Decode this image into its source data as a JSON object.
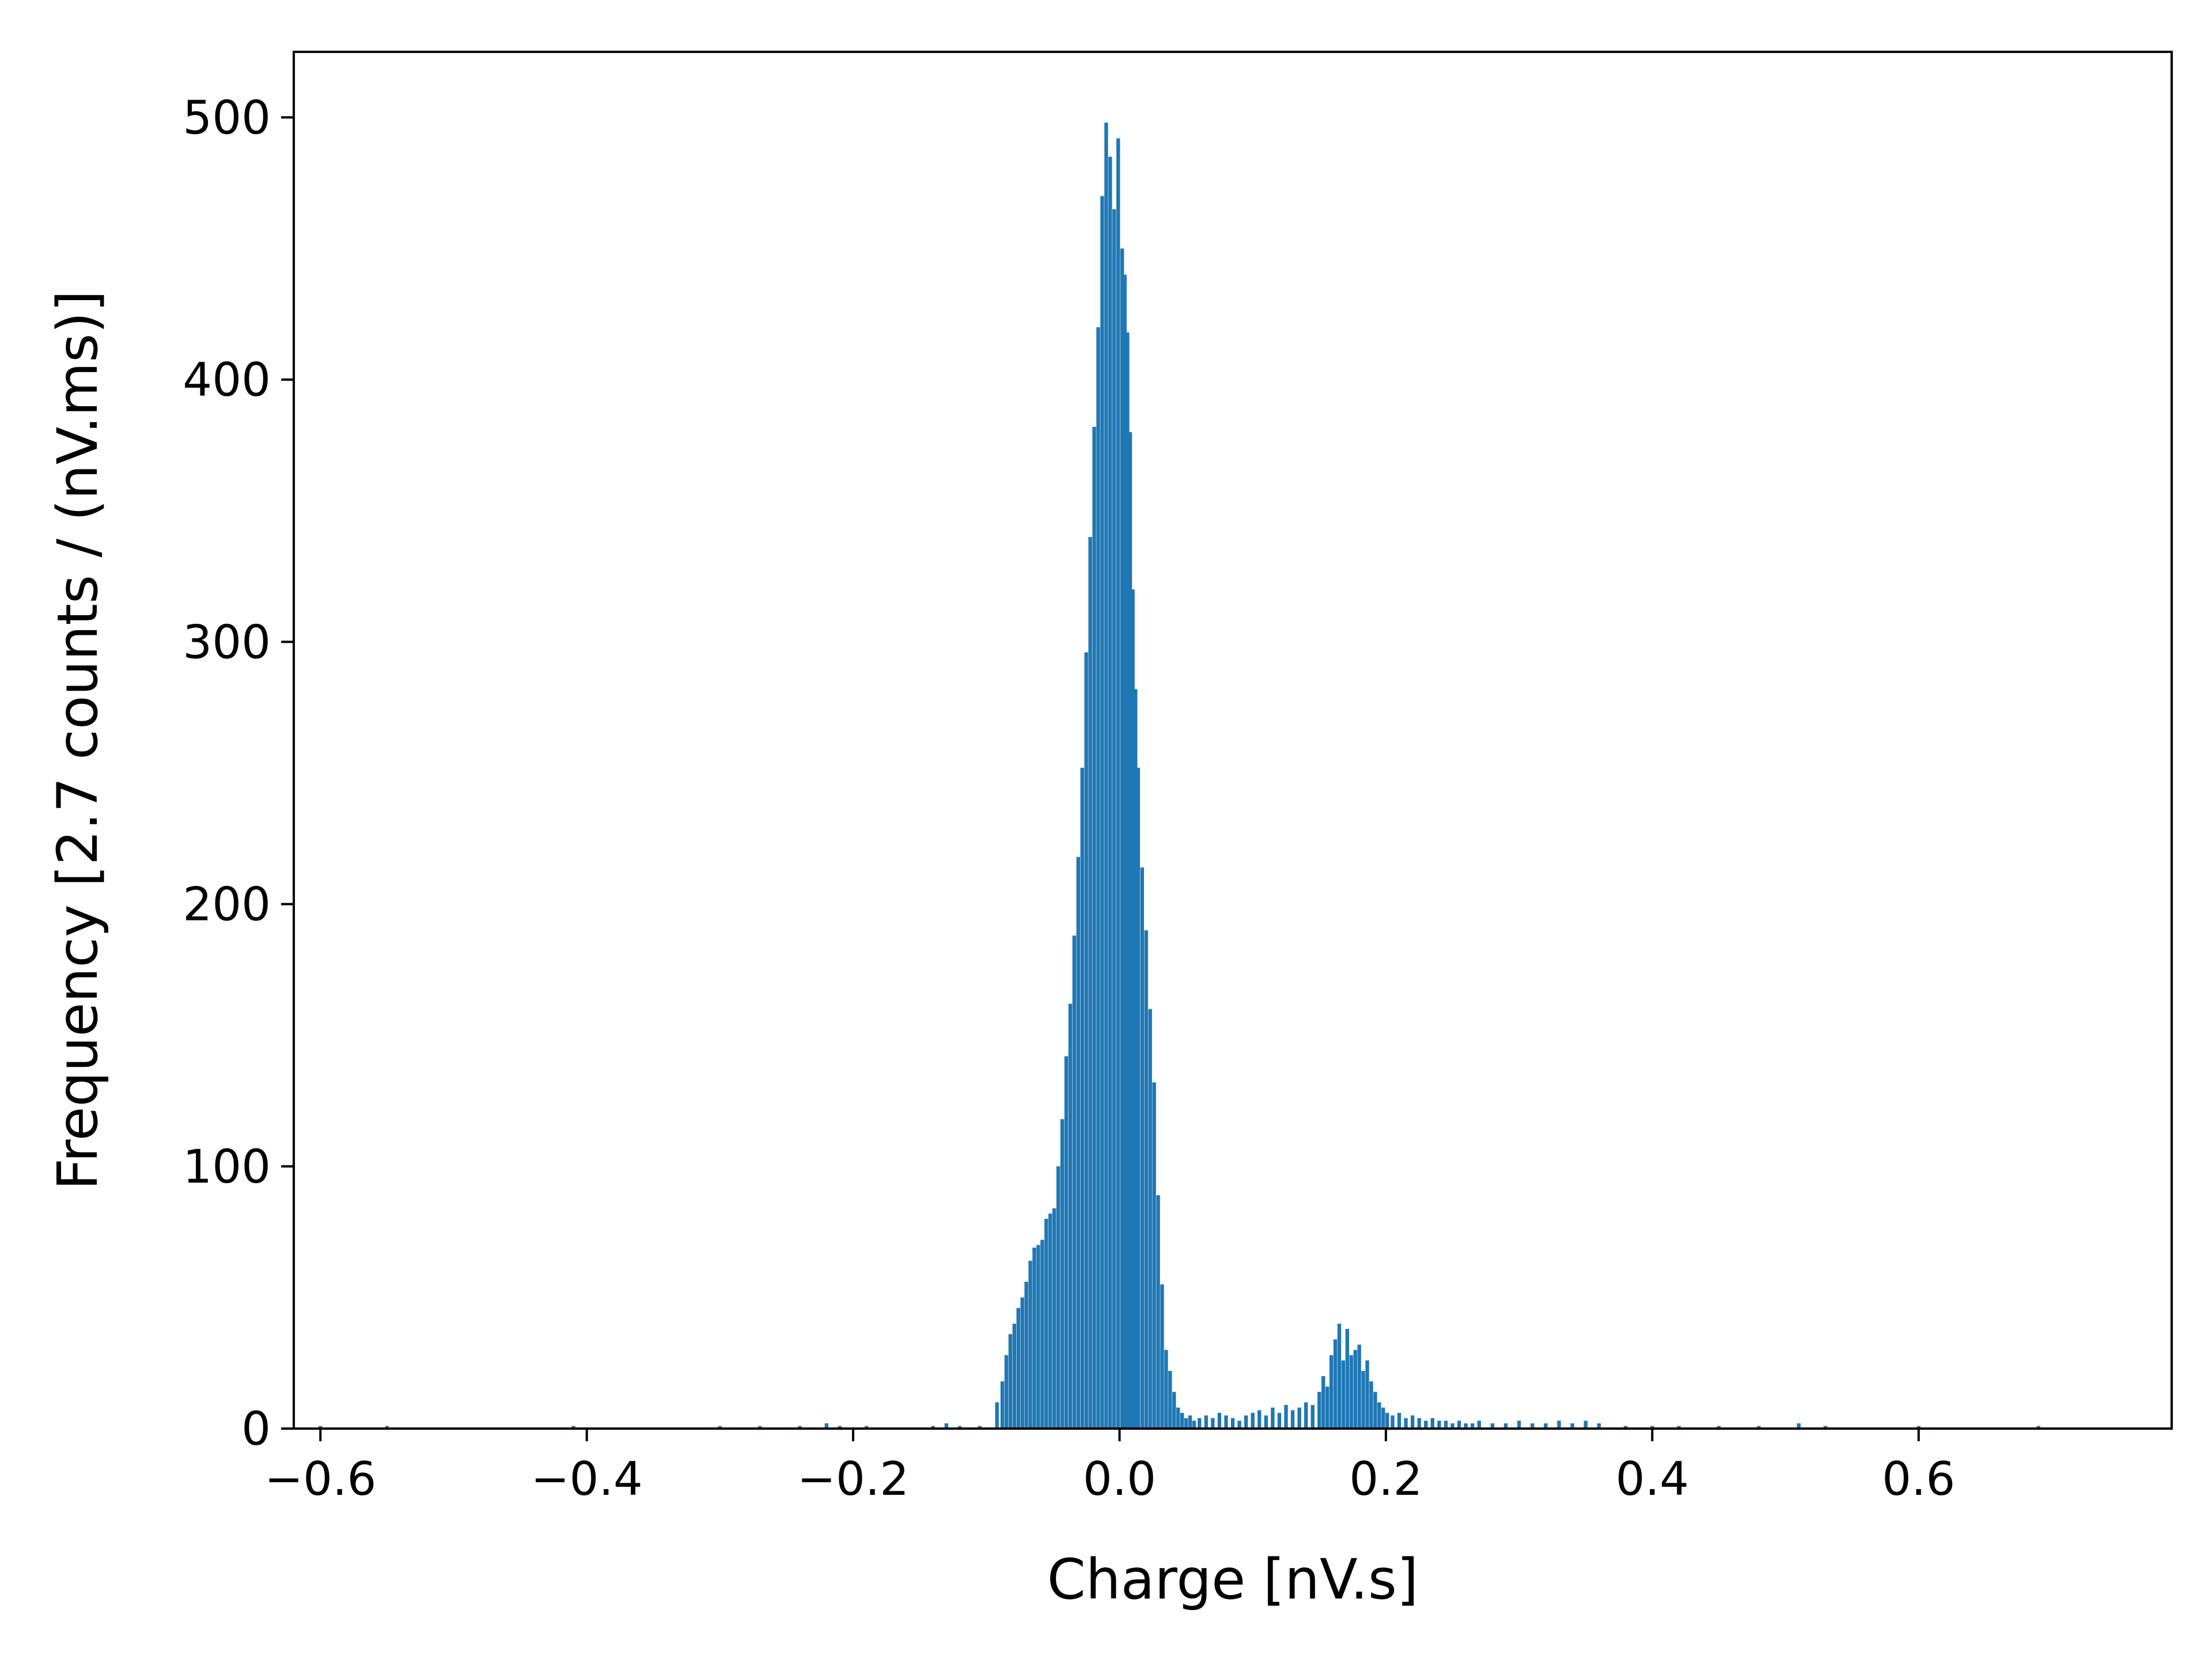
{
  "chart_data": {
    "type": "bar",
    "histogram": true,
    "title": "",
    "xlabel": "Charge [nV.s]",
    "ylabel": "Frequency [2.7 counts / (nV.ms)]",
    "xlim": [
      -0.62,
      0.79
    ],
    "ylim": [
      0,
      525
    ],
    "xticks": [
      -0.6,
      -0.4,
      -0.2,
      0.0,
      0.2,
      0.4,
      0.6
    ],
    "xtick_labels": [
      "−0.6",
      "−0.4",
      "−0.2",
      "0.0",
      "0.2",
      "0.4",
      "0.6"
    ],
    "yticks": [
      0,
      100,
      200,
      300,
      400,
      500
    ],
    "ytick_labels": [
      "0",
      "100",
      "200",
      "300",
      "400",
      "500"
    ],
    "grid": false,
    "legend": "none",
    "color": "#1f77b4",
    "bin_width": 0.00275,
    "series": [
      {
        "x": [
          -0.6,
          -0.55,
          -0.41,
          -0.3,
          -0.27,
          -0.24,
          -0.22,
          -0.21,
          -0.19,
          -0.14,
          -0.13,
          -0.12,
          -0.105,
          -0.092,
          -0.088,
          -0.085,
          -0.082,
          -0.079,
          -0.076,
          -0.073,
          -0.07,
          -0.067,
          -0.064,
          -0.061,
          -0.058,
          -0.055,
          -0.052,
          -0.049,
          -0.046,
          -0.043,
          -0.04,
          -0.037,
          -0.034,
          -0.031,
          -0.028,
          -0.025,
          -0.022,
          -0.019,
          -0.016,
          -0.013,
          -0.01,
          -0.007,
          -0.004,
          -0.001,
          0.002,
          0.004,
          0.006,
          0.008,
          0.01,
          0.012,
          0.014,
          0.017,
          0.02,
          0.023,
          0.026,
          0.029,
          0.032,
          0.035,
          0.038,
          0.041,
          0.044,
          0.047,
          0.05,
          0.053,
          0.056,
          0.06,
          0.065,
          0.07,
          0.075,
          0.08,
          0.085,
          0.09,
          0.095,
          0.1,
          0.105,
          0.11,
          0.115,
          0.12,
          0.125,
          0.13,
          0.135,
          0.14,
          0.145,
          0.15,
          0.153,
          0.156,
          0.159,
          0.162,
          0.165,
          0.168,
          0.171,
          0.174,
          0.177,
          0.18,
          0.183,
          0.186,
          0.189,
          0.192,
          0.195,
          0.198,
          0.201,
          0.205,
          0.21,
          0.215,
          0.22,
          0.225,
          0.23,
          0.235,
          0.24,
          0.245,
          0.25,
          0.255,
          0.26,
          0.265,
          0.27,
          0.28,
          0.29,
          0.3,
          0.31,
          0.32,
          0.33,
          0.34,
          0.35,
          0.36,
          0.38,
          0.4,
          0.42,
          0.45,
          0.48,
          0.51,
          0.53,
          0.6,
          0.69
        ],
        "y": [
          1,
          1,
          1,
          1,
          1,
          1,
          2,
          1,
          1,
          1,
          2,
          1,
          1,
          10,
          18,
          28,
          36,
          40,
          46,
          50,
          56,
          64,
          69,
          70,
          72,
          80,
          82,
          84,
          100,
          118,
          142,
          162,
          188,
          218,
          252,
          296,
          340,
          382,
          420,
          470,
          498,
          485,
          465,
          492,
          450,
          440,
          418,
          380,
          320,
          282,
          252,
          214,
          190,
          160,
          132,
          89,
          55,
          30,
          22,
          14,
          8,
          6,
          4,
          5,
          3,
          4,
          5,
          4,
          6,
          5,
          4,
          3,
          5,
          6,
          7,
          5,
          8,
          6,
          9,
          7,
          8,
          10,
          9,
          14,
          20,
          16,
          28,
          34,
          40,
          26,
          38,
          28,
          30,
          32,
          22,
          26,
          18,
          14,
          10,
          8,
          6,
          5,
          6,
          4,
          5,
          4,
          3,
          4,
          3,
          3,
          2,
          3,
          2,
          2,
          3,
          2,
          2,
          3,
          2,
          2,
          3,
          2,
          3,
          2,
          1,
          1,
          1,
          1,
          1,
          2,
          1,
          1,
          1
        ]
      }
    ]
  }
}
